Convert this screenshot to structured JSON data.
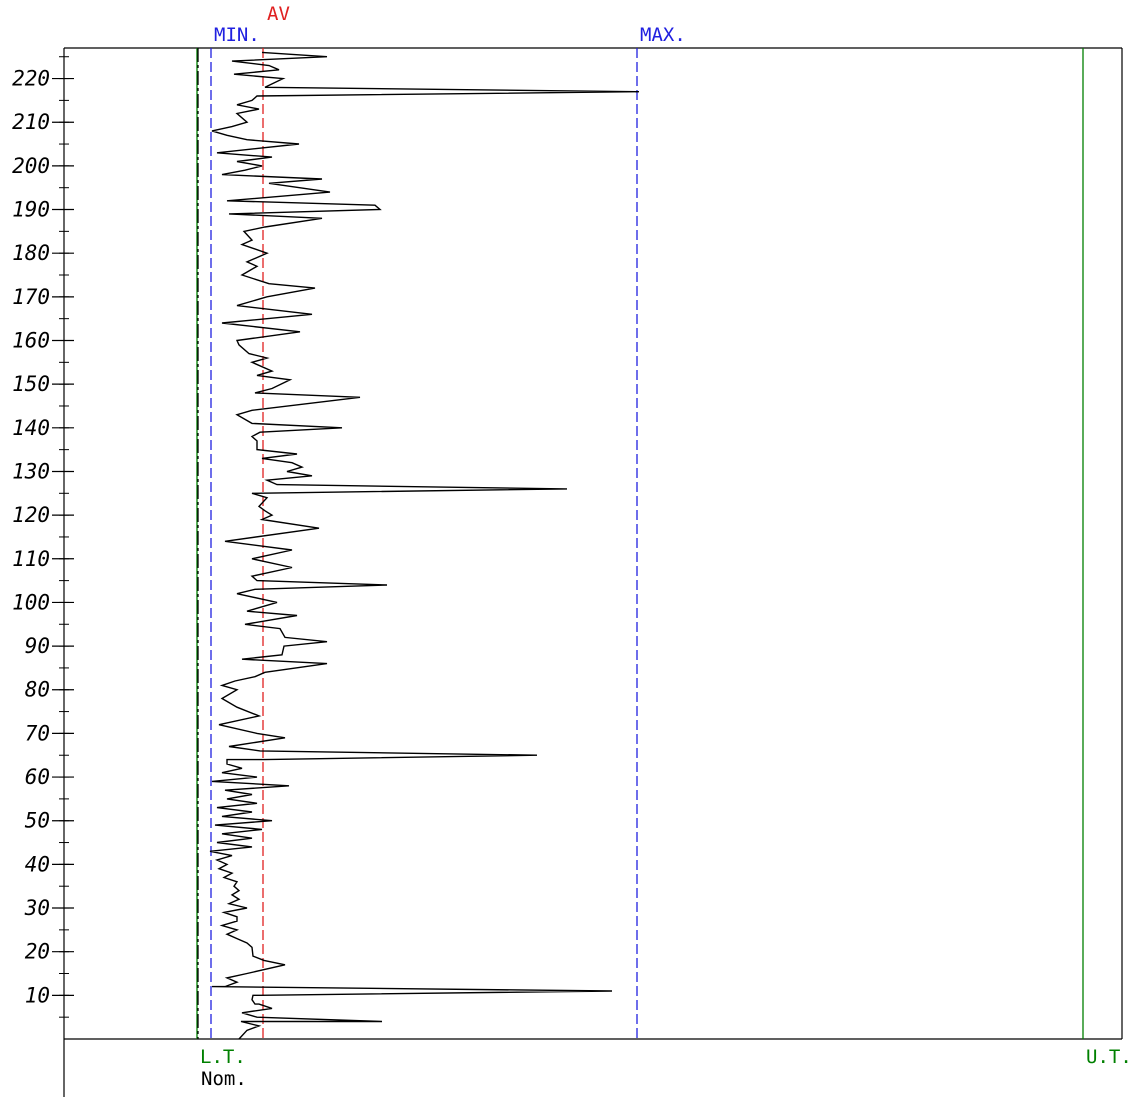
{
  "chart_data": {
    "type": "line",
    "orientation": "vertical-series",
    "title": "",
    "xlabel": "",
    "ylabel": "",
    "ylim": [
      0,
      227
    ],
    "y_major_ticks": [
      10,
      20,
      30,
      40,
      50,
      60,
      70,
      80,
      90,
      100,
      110,
      120,
      130,
      140,
      150,
      160,
      170,
      180,
      190,
      200,
      210,
      220
    ],
    "y_tick_labels": [
      "10",
      "20",
      "30",
      "40",
      "50",
      "60",
      "70",
      "80",
      "90",
      "100",
      "110",
      "120",
      "130",
      "140",
      "150",
      "160",
      "170",
      "180",
      "190",
      "200",
      "210",
      "220"
    ],
    "y_minor_step": 5,
    "reference_lines": [
      {
        "id": "lt",
        "label": "L.T.",
        "value": 0,
        "color": "#008000",
        "style": "solid",
        "label_position": "bottom"
      },
      {
        "id": "nom",
        "label": "Nom.",
        "value": 0,
        "color": "#000000",
        "style": "dashed",
        "label_position": "bottom"
      },
      {
        "id": "min",
        "label": "MIN.",
        "value": 14,
        "color": "#2020e0",
        "style": "dashed",
        "label_position": "top"
      },
      {
        "id": "av",
        "label": "AV",
        "value": 66,
        "color": "#e02020",
        "style": "dashed",
        "label_position": "top"
      },
      {
        "id": "max",
        "label": "MAX.",
        "value": 440,
        "color": "#2020e0",
        "style": "dashed",
        "label_position": "top"
      },
      {
        "id": "ut",
        "label": "U.T.",
        "value": 886,
        "color": "#008000",
        "style": "solid",
        "label_position": "bottom"
      }
    ],
    "xlim": [
      -133,
      925
    ],
    "series": [
      {
        "color": "#000000",
        "points": [
          [
            42,
            0
          ],
          [
            50,
            2
          ],
          [
            62,
            3
          ],
          [
            44,
            4
          ],
          [
            185,
            4
          ],
          [
            60,
            5
          ],
          [
            45,
            6
          ],
          [
            75,
            7
          ],
          [
            62,
            8
          ],
          [
            58,
            8
          ],
          [
            55,
            9
          ],
          [
            56,
            10
          ],
          [
            63,
            10
          ],
          [
            415,
            11
          ],
          [
            15,
            12
          ],
          [
            28,
            12
          ],
          [
            40,
            13
          ],
          [
            30,
            14
          ],
          [
            50,
            15
          ],
          [
            88,
            17
          ],
          [
            67,
            18
          ],
          [
            56,
            19
          ],
          [
            55,
            21
          ],
          [
            50,
            22
          ],
          [
            40,
            23
          ],
          [
            30,
            24
          ],
          [
            40,
            25
          ],
          [
            25,
            26
          ],
          [
            40,
            27
          ],
          [
            40,
            28
          ],
          [
            27,
            29
          ],
          [
            50,
            30
          ],
          [
            32,
            31
          ],
          [
            42,
            32
          ],
          [
            35,
            33
          ],
          [
            42,
            34
          ],
          [
            37,
            35
          ],
          [
            40,
            36
          ],
          [
            27,
            37
          ],
          [
            35,
            38
          ],
          [
            22,
            39
          ],
          [
            30,
            40
          ],
          [
            20,
            41
          ],
          [
            35,
            42
          ],
          [
            13,
            43
          ],
          [
            55,
            44
          ],
          [
            20,
            45
          ],
          [
            55,
            46
          ],
          [
            25,
            47
          ],
          [
            65,
            48
          ],
          [
            18,
            49
          ],
          [
            75,
            50
          ],
          [
            25,
            51
          ],
          [
            55,
            52
          ],
          [
            20,
            53
          ],
          [
            60,
            54
          ],
          [
            30,
            55
          ],
          [
            55,
            56
          ],
          [
            28,
            57
          ],
          [
            92,
            58
          ],
          [
            15,
            59
          ],
          [
            60,
            60
          ],
          [
            25,
            61
          ],
          [
            45,
            62
          ],
          [
            30,
            63
          ],
          [
            30,
            64
          ],
          [
            68,
            64
          ],
          [
            340,
            65
          ],
          [
            63,
            66
          ],
          [
            32,
            67
          ],
          [
            88,
            69
          ],
          [
            60,
            70
          ],
          [
            22,
            72
          ],
          [
            62,
            74
          ],
          [
            40,
            76
          ],
          [
            25,
            78
          ],
          [
            40,
            80
          ],
          [
            25,
            81
          ],
          [
            38,
            82
          ],
          [
            58,
            83
          ],
          [
            68,
            84
          ],
          [
            130,
            86
          ],
          [
            45,
            87
          ],
          [
            85,
            88
          ],
          [
            87,
            90
          ],
          [
            130,
            91
          ],
          [
            88,
            92
          ],
          [
            83,
            94
          ],
          [
            48,
            95
          ],
          [
            100,
            97
          ],
          [
            50,
            98
          ],
          [
            80,
            100
          ],
          [
            40,
            102
          ],
          [
            58,
            103
          ],
          [
            190,
            104
          ],
          [
            60,
            105
          ],
          [
            55,
            106
          ],
          [
            95,
            108
          ],
          [
            55,
            110
          ],
          [
            95,
            112
          ],
          [
            28,
            114
          ],
          [
            122,
            117
          ],
          [
            65,
            119
          ],
          [
            75,
            120
          ],
          [
            68,
            121
          ],
          [
            62,
            122
          ],
          [
            70,
            124
          ],
          [
            55,
            125
          ],
          [
            370,
            126
          ],
          [
            80,
            127
          ],
          [
            70,
            128
          ],
          [
            115,
            129
          ],
          [
            90,
            130
          ],
          [
            105,
            131
          ],
          [
            95,
            132
          ],
          [
            65,
            133
          ],
          [
            100,
            134
          ],
          [
            60,
            135
          ],
          [
            60,
            137
          ],
          [
            55,
            138
          ],
          [
            63,
            139
          ],
          [
            145,
            140
          ],
          [
            55,
            141
          ],
          [
            40,
            143
          ],
          [
            55,
            144
          ],
          [
            163,
            147
          ],
          [
            58,
            148
          ],
          [
            75,
            149
          ],
          [
            93,
            151
          ],
          [
            60,
            152
          ],
          [
            75,
            153
          ],
          [
            55,
            155
          ],
          [
            70,
            156
          ],
          [
            52,
            157
          ],
          [
            42,
            159
          ],
          [
            40,
            160
          ],
          [
            103,
            162
          ],
          [
            25,
            164
          ],
          [
            115,
            166
          ],
          [
            40,
            168
          ],
          [
            70,
            170
          ],
          [
            118,
            172
          ],
          [
            72,
            173
          ],
          [
            45,
            175
          ],
          [
            60,
            177
          ],
          [
            50,
            178
          ],
          [
            70,
            180
          ],
          [
            45,
            182
          ],
          [
            55,
            183
          ],
          [
            47,
            185
          ],
          [
            68,
            186
          ],
          [
            125,
            188
          ],
          [
            32,
            189
          ],
          [
            183,
            190
          ],
          [
            178,
            191
          ],
          [
            30,
            192
          ],
          [
            133,
            194
          ],
          [
            72,
            196
          ],
          [
            125,
            197
          ],
          [
            25,
            198
          ],
          [
            48,
            199
          ],
          [
            65,
            200
          ],
          [
            40,
            201
          ],
          [
            75,
            202
          ],
          [
            20,
            203
          ],
          [
            102,
            205
          ],
          [
            50,
            206
          ],
          [
            30,
            207
          ],
          [
            15,
            208
          ],
          [
            35,
            209
          ],
          [
            50,
            210
          ],
          [
            40,
            212
          ],
          [
            62,
            213
          ],
          [
            40,
            214
          ],
          [
            55,
            215
          ],
          [
            60,
            216
          ],
          [
            442,
            217
          ],
          [
            68,
            218
          ],
          [
            86,
            220
          ],
          [
            37,
            221
          ],
          [
            82,
            222
          ],
          [
            72,
            223
          ],
          [
            35,
            224
          ],
          [
            130,
            225
          ],
          [
            65,
            226
          ]
        ]
      }
    ]
  }
}
